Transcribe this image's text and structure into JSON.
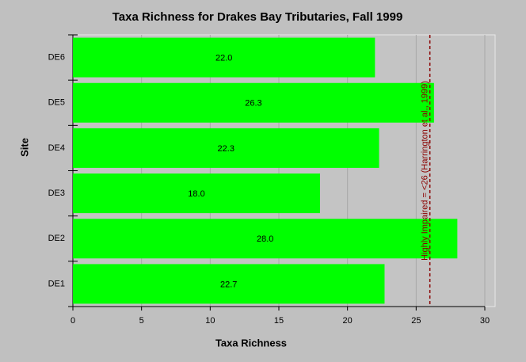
{
  "chart_data": {
    "type": "hbar",
    "title": "Taxa Richness for Drakes Bay Tributaries, Fall 1999",
    "x_label": "Taxa Richness",
    "y_label": "Site",
    "categories": [
      "DE6",
      "DE5",
      "DE4",
      "DE3",
      "DE2",
      "DE1"
    ],
    "values": [
      22.0,
      26.3,
      22.3,
      18.0,
      28.0,
      22.7
    ],
    "value_labels": [
      "22.0",
      "26.3",
      "22.3",
      "18.0",
      "28.0",
      "22.7"
    ],
    "color": "#00ff00",
    "xlim": [
      0,
      30
    ],
    "xticks": [
      0,
      5,
      10,
      15,
      20,
      25,
      30
    ],
    "grid": true,
    "reference_line": {
      "value": 26,
      "color": "#8b0000",
      "label": "Highly Impaired = <26 (Harrington et al., 1999)"
    }
  }
}
